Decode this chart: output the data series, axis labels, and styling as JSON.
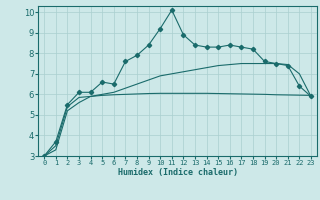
{
  "xlabel": "Humidex (Indice chaleur)",
  "ylabel": "",
  "bg_color": "#cde8e8",
  "grid_color": "#aacfcf",
  "line_color": "#1a6b6b",
  "xlim": [
    -0.5,
    23.5
  ],
  "ylim": [
    3,
    10.3
  ],
  "xticks": [
    0,
    1,
    2,
    3,
    4,
    5,
    6,
    7,
    8,
    9,
    10,
    11,
    12,
    13,
    14,
    15,
    16,
    17,
    18,
    19,
    20,
    21,
    22,
    23
  ],
  "yticks": [
    3,
    4,
    5,
    6,
    7,
    8,
    9,
    10
  ],
  "series1_x": [
    0,
    1,
    2,
    3,
    4,
    5,
    6,
    7,
    8,
    9,
    10,
    11,
    12,
    13,
    14,
    15,
    16,
    17,
    18,
    19,
    20,
    21,
    22,
    23
  ],
  "series1_y": [
    3.0,
    3.7,
    5.5,
    6.1,
    6.1,
    6.6,
    6.5,
    7.6,
    7.9,
    8.4,
    9.2,
    10.1,
    8.9,
    8.4,
    8.3,
    8.3,
    8.4,
    8.3,
    8.2,
    7.6,
    7.5,
    7.4,
    6.4,
    5.9
  ],
  "series2_x": [
    0,
    1,
    2,
    3,
    4,
    5,
    6,
    7,
    8,
    9,
    10,
    11,
    12,
    13,
    14,
    15,
    16,
    17,
    18,
    19,
    20,
    21,
    22,
    23
  ],
  "series2_y": [
    3.0,
    3.5,
    5.4,
    5.85,
    5.9,
    5.95,
    5.98,
    6.0,
    6.02,
    6.04,
    6.05,
    6.05,
    6.05,
    6.05,
    6.05,
    6.04,
    6.03,
    6.02,
    6.01,
    6.0,
    5.98,
    5.97,
    5.96,
    5.95
  ],
  "series3_x": [
    0,
    1,
    2,
    3,
    4,
    5,
    6,
    7,
    8,
    9,
    10,
    11,
    12,
    13,
    14,
    15,
    16,
    17,
    18,
    19,
    20,
    21,
    22,
    23
  ],
  "series3_y": [
    3.0,
    3.3,
    5.2,
    5.6,
    5.9,
    6.0,
    6.1,
    6.3,
    6.5,
    6.7,
    6.9,
    7.0,
    7.1,
    7.2,
    7.3,
    7.4,
    7.45,
    7.5,
    7.5,
    7.5,
    7.5,
    7.45,
    7.0,
    5.9
  ]
}
